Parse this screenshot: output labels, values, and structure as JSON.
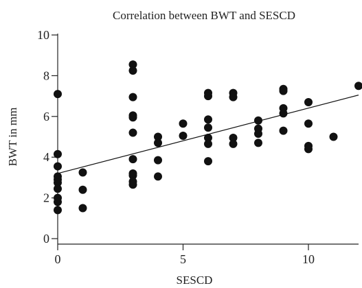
{
  "chart_data": {
    "type": "scatter",
    "title": "Correlation between BWT and SESCD",
    "xlabel": "SESCD",
    "ylabel": "BWT in mm",
    "xlim": [
      0,
      12
    ],
    "ylim": [
      0,
      10
    ],
    "xticks": [
      0,
      5,
      10
    ],
    "yticks": [
      0,
      2,
      4,
      6,
      8,
      10
    ],
    "grid": false,
    "legend": "none",
    "marker_color": "#111111",
    "trendline": {
      "x": [
        0,
        12
      ],
      "y": [
        3.2,
        7.05
      ]
    },
    "points": [
      [
        0,
        7.1
      ],
      [
        0,
        4.15
      ],
      [
        0,
        3.55
      ],
      [
        0,
        3.05
      ],
      [
        0,
        2.9
      ],
      [
        0,
        2.75
      ],
      [
        0,
        2.45
      ],
      [
        0,
        2.0
      ],
      [
        0,
        1.8
      ],
      [
        0,
        1.4
      ],
      [
        1,
        3.25
      ],
      [
        1,
        2.4
      ],
      [
        1,
        1.5
      ],
      [
        3,
        8.55
      ],
      [
        3,
        8.25
      ],
      [
        3,
        6.95
      ],
      [
        3,
        6.05
      ],
      [
        3,
        5.95
      ],
      [
        3,
        5.2
      ],
      [
        3,
        3.9
      ],
      [
        3,
        3.2
      ],
      [
        3,
        3.1
      ],
      [
        3,
        2.8
      ],
      [
        3,
        2.65
      ],
      [
        4,
        5.0
      ],
      [
        4,
        4.7
      ],
      [
        4,
        3.85
      ],
      [
        4,
        3.05
      ],
      [
        5,
        5.65
      ],
      [
        5,
        5.05
      ],
      [
        6,
        7.15
      ],
      [
        6,
        7.0
      ],
      [
        6,
        5.85
      ],
      [
        6,
        5.45
      ],
      [
        6,
        4.95
      ],
      [
        6,
        4.65
      ],
      [
        6,
        3.8
      ],
      [
        7,
        7.15
      ],
      [
        7,
        6.95
      ],
      [
        7,
        4.95
      ],
      [
        7,
        4.65
      ],
      [
        8,
        5.8
      ],
      [
        8,
        5.4
      ],
      [
        8,
        5.15
      ],
      [
        8,
        4.7
      ],
      [
        9,
        7.35
      ],
      [
        9,
        7.25
      ],
      [
        9,
        6.4
      ],
      [
        9,
        6.15
      ],
      [
        9,
        5.3
      ],
      [
        10,
        6.7
      ],
      [
        10,
        5.65
      ],
      [
        10,
        4.55
      ],
      [
        10,
        4.4
      ],
      [
        11,
        5.0
      ],
      [
        12,
        7.5
      ]
    ]
  }
}
